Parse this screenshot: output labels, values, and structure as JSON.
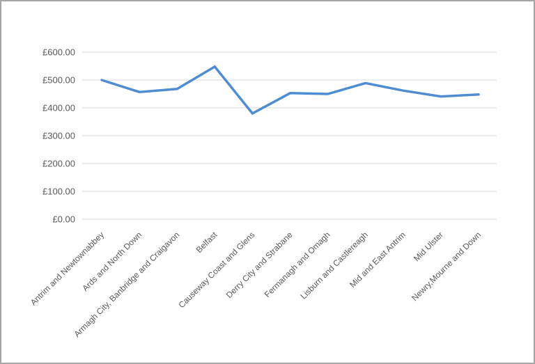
{
  "frame": {
    "background_color": "#ffffff",
    "border_color": "#a6a6a6"
  },
  "chart_data": {
    "type": "line",
    "title": "",
    "xlabel": "",
    "ylabel": "",
    "categories": [
      "Antrim and Newtownabbey",
      "Ards and North Down",
      "Armagh City, Banbridge and Craigavon",
      "Belfast",
      "Causeway Coast and Glens",
      "Derry City and Strabane",
      "Fermanagh and Omagh",
      "Lisburn and Castlereagh",
      "Mid and East Antrim",
      "Mid Ulster",
      "Newry,Mourne and Down"
    ],
    "values": [
      500,
      457,
      468,
      548,
      380,
      453,
      450,
      489,
      462,
      441,
      448
    ],
    "ylim": [
      0,
      600
    ],
    "ytick_values": [
      0,
      100,
      200,
      300,
      400,
      500,
      600
    ],
    "ytick_labels": [
      "£0.00",
      "£100.00",
      "£200.00",
      "£300.00",
      "£400.00",
      "£500.00",
      "£600.00"
    ],
    "grid": true,
    "legend_position": "none",
    "x_label_rotation_deg": -45,
    "line_color": "#4f8dd3",
    "gridline_color": "#d9d9d9",
    "axis_label_color": "#595959"
  }
}
